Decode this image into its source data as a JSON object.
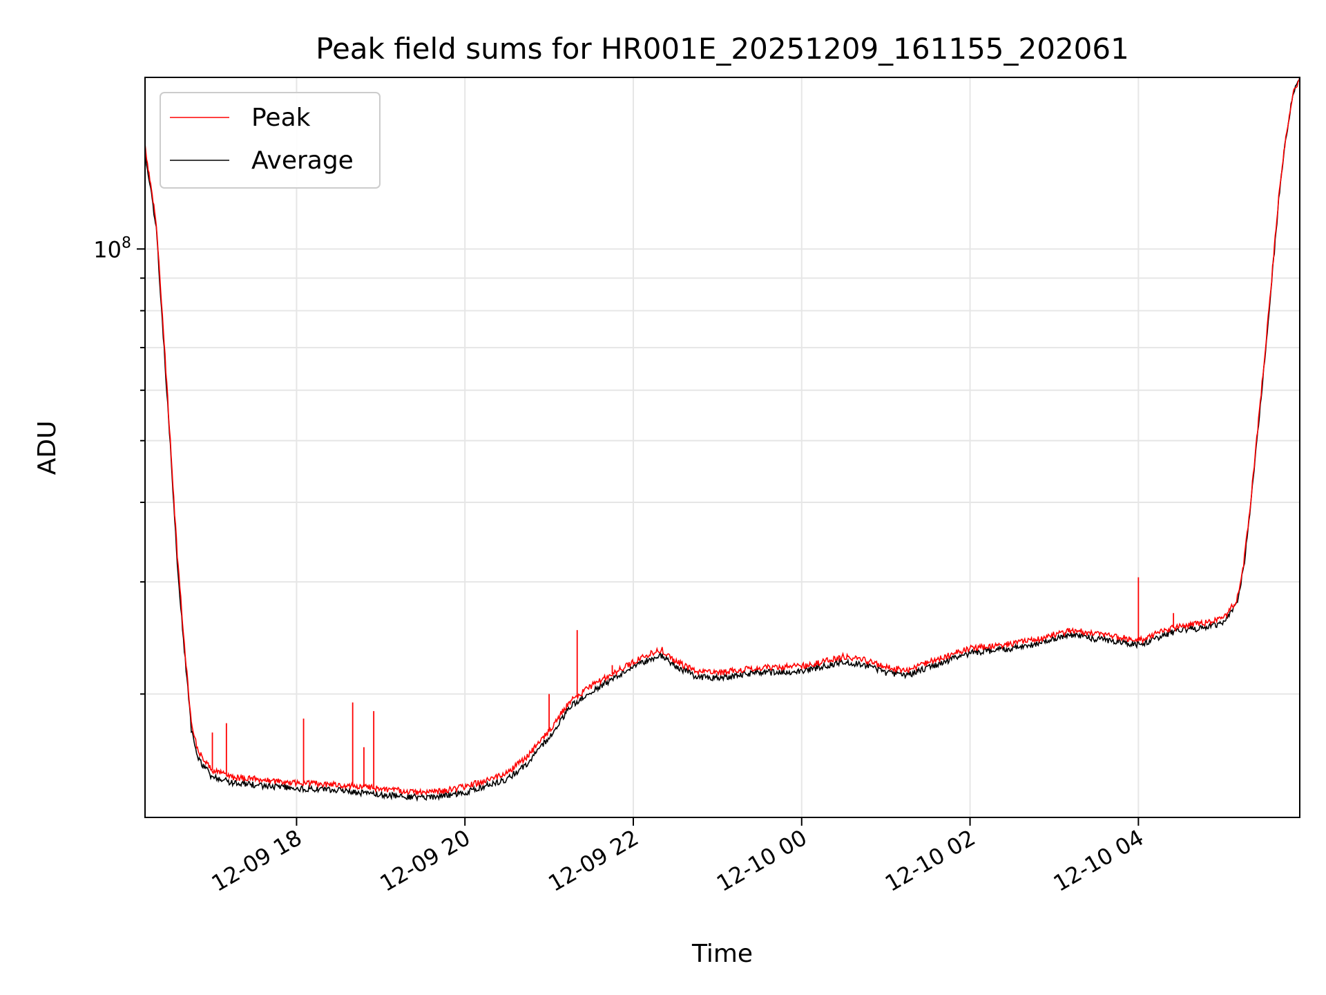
{
  "chart_data": {
    "type": "line",
    "title": "Peak field sums for HR001E_20251209_161155_202061",
    "xlabel": "Time",
    "ylabel": "ADU",
    "yscale": "log",
    "ylim": [
      12800000,
      186000000
    ],
    "xlim": [
      "12-09 16:12",
      "12-10 05:55"
    ],
    "grid": true,
    "legend": {
      "placement": "top-left",
      "entries": [
        "Peak",
        "Average"
      ]
    },
    "colors": {
      "Peak": "#ff0000",
      "Average": "#000000",
      "grid": "#e6e6e6"
    },
    "x_ticks": [
      {
        "label": "12-09 18",
        "time": "12-09 18:00"
      },
      {
        "label": "12-09 20",
        "time": "12-09 20:00"
      },
      {
        "label": "12-09 22",
        "time": "12-09 22:00"
      },
      {
        "label": "12-10 00",
        "time": "12-10 00:00"
      },
      {
        "label": "12-10 02",
        "time": "12-10 02:00"
      },
      {
        "label": "12-10 04",
        "time": "12-10 04:00"
      }
    ],
    "y_ticks": [
      {
        "label": "10",
        "exp": "8",
        "value": 100000000
      }
    ],
    "series": [
      {
        "name": "Peak",
        "x": [
          "12-09 16:12",
          "12-09 16:20",
          "12-09 16:25",
          "12-09 16:30",
          "12-09 16:35",
          "12-09 16:40",
          "12-09 16:45",
          "12-09 16:50",
          "12-09 17:00",
          "12-09 17:15",
          "12-09 17:30",
          "12-09 18:00",
          "12-09 18:30",
          "12-09 19:00",
          "12-09 19:30",
          "12-09 19:45",
          "12-09 20:00",
          "12-09 20:30",
          "12-09 20:45",
          "12-09 21:00",
          "12-09 21:15",
          "12-09 21:30",
          "12-09 21:45",
          "12-09 22:00",
          "12-09 22:15",
          "12-09 22:20",
          "12-09 22:30",
          "12-09 22:45",
          "12-09 23:00",
          "12-09 23:30",
          "12-10 00:00",
          "12-10 00:30",
          "12-10 00:45",
          "12-10 01:00",
          "12-10 01:15",
          "12-10 01:30",
          "12-10 01:45",
          "12-10 02:00",
          "12-10 02:30",
          "12-10 02:45",
          "12-10 03:00",
          "12-10 03:15",
          "12-10 03:30",
          "12-10 03:45",
          "12-10 04:00",
          "12-10 04:05",
          "12-10 04:15",
          "12-10 04:30",
          "12-10 04:45",
          "12-10 05:00",
          "12-10 05:10",
          "12-10 05:15",
          "12-10 05:20",
          "12-10 05:25",
          "12-10 05:30",
          "12-10 05:35",
          "12-10 05:40",
          "12-10 05:45",
          "12-10 05:50",
          "12-10 05:55"
        ],
        "y": [
          145000000,
          110000000,
          75000000,
          50000000,
          33000000,
          24000000,
          18000000,
          16200000,
          15200000,
          14800000,
          14700000,
          14500000,
          14400000,
          14200000,
          14000000,
          14100000,
          14300000,
          15000000,
          16000000,
          17500000,
          19500000,
          20600000,
          21500000,
          22500000,
          23300000,
          23500000,
          22500000,
          21700000,
          21600000,
          22000000,
          22100000,
          22900000,
          22600000,
          22000000,
          21800000,
          22400000,
          23000000,
          23600000,
          24000000,
          24300000,
          24800000,
          25200000,
          24800000,
          24600000,
          24300000,
          24400000,
          25000000,
          25600000,
          25800000,
          26200000,
          28000000,
          32000000,
          40000000,
          52000000,
          68000000,
          90000000,
          120000000,
          150000000,
          175000000,
          186000000
        ],
        "spikes": [
          {
            "time": "12-09 17:00",
            "value": 17400000
          },
          {
            "time": "12-09 17:10",
            "value": 18000000
          },
          {
            "time": "12-09 18:05",
            "value": 18300000
          },
          {
            "time": "12-09 18:40",
            "value": 19400000
          },
          {
            "time": "12-09 18:48",
            "value": 16500000
          },
          {
            "time": "12-09 18:55",
            "value": 18800000
          },
          {
            "time": "12-09 21:00",
            "value": 20000000
          },
          {
            "time": "12-09 21:20",
            "value": 25200000
          },
          {
            "time": "12-09 21:45",
            "value": 22200000
          },
          {
            "time": "12-10 04:00",
            "value": 30500000
          },
          {
            "time": "12-10 04:25",
            "value": 26800000
          }
        ]
      },
      {
        "name": "Average",
        "x": [
          "12-09 16:12",
          "12-09 16:20",
          "12-09 16:25",
          "12-09 16:30",
          "12-09 16:35",
          "12-09 16:40",
          "12-09 16:45",
          "12-09 16:50",
          "12-09 17:00",
          "12-09 17:15",
          "12-09 17:30",
          "12-09 18:00",
          "12-09 18:30",
          "12-09 19:00",
          "12-09 19:30",
          "12-09 19:45",
          "12-09 20:00",
          "12-09 20:30",
          "12-09 20:45",
          "12-09 21:00",
          "12-09 21:15",
          "12-09 21:30",
          "12-09 21:45",
          "12-09 22:00",
          "12-09 22:15",
          "12-09 22:20",
          "12-09 22:30",
          "12-09 22:45",
          "12-09 23:00",
          "12-09 23:30",
          "12-10 00:00",
          "12-10 00:30",
          "12-10 00:45",
          "12-10 01:00",
          "12-10 01:15",
          "12-10 01:30",
          "12-10 01:45",
          "12-10 02:00",
          "12-10 02:30",
          "12-10 02:45",
          "12-10 03:00",
          "12-10 03:15",
          "12-10 03:30",
          "12-10 03:45",
          "12-10 04:00",
          "12-10 04:05",
          "12-10 04:15",
          "12-10 04:30",
          "12-10 04:45",
          "12-10 05:00",
          "12-10 05:10",
          "12-10 05:15",
          "12-10 05:20",
          "12-10 05:25",
          "12-10 05:30",
          "12-10 05:35",
          "12-10 05:40",
          "12-10 05:45",
          "12-10 05:50",
          "12-10 05:55"
        ],
        "y": [
          142000000,
          108000000,
          73000000,
          49000000,
          32000000,
          23500000,
          17600000,
          15800000,
          14800000,
          14500000,
          14400000,
          14200000,
          14100000,
          13900000,
          13750000,
          13850000,
          14000000,
          14700000,
          15600000,
          17100000,
          19100000,
          20200000,
          21100000,
          22100000,
          22800000,
          23000000,
          22100000,
          21300000,
          21200000,
          21600000,
          21700000,
          22500000,
          22200000,
          21600000,
          21400000,
          22000000,
          22600000,
          23200000,
          23600000,
          23900000,
          24400000,
          24800000,
          24400000,
          24200000,
          23900000,
          24000000,
          24600000,
          25200000,
          25400000,
          25800000,
          27600000,
          31500000,
          39500000,
          51500000,
          67000000,
          89000000,
          119000000,
          149000000,
          174000000,
          186000000
        ]
      }
    ]
  }
}
